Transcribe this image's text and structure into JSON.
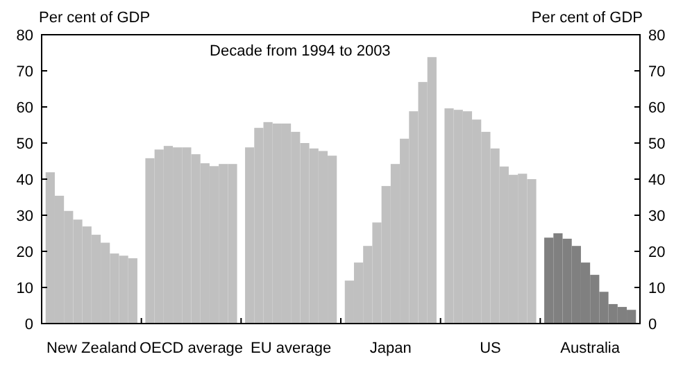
{
  "chart_data": {
    "type": "bar",
    "ylabel": "Per cent of GDP",
    "y2label": "Per cent of GDP",
    "annotations": [
      "Decade from 1994 to 2003"
    ],
    "categories": [
      "New Zealand",
      "OECD average",
      "EU average",
      "Japan",
      "US",
      "Australia"
    ],
    "series": [
      {
        "colors": [
          "#c0c0c0",
          "#c0c0c0",
          "#c0c0c0",
          "#c0c0c0",
          "#c0c0c0",
          "#808080"
        ],
        "values": [
          41.9,
          45.8,
          48.8,
          11.9,
          59.6,
          23.8
        ]
      },
      {
        "colors": [
          "#c0c0c0",
          "#c0c0c0",
          "#c0c0c0",
          "#c0c0c0",
          "#c0c0c0",
          "#808080"
        ],
        "values": [
          35.4,
          48.2,
          54.2,
          16.9,
          59.2,
          25.0
        ]
      },
      {
        "colors": [
          "#c0c0c0",
          "#c0c0c0",
          "#c0c0c0",
          "#c0c0c0",
          "#c0c0c0",
          "#808080"
        ],
        "values": [
          31.2,
          49.2,
          55.8,
          21.5,
          58.8,
          23.5
        ]
      },
      {
        "colors": [
          "#c0c0c0",
          "#c0c0c0",
          "#c0c0c0",
          "#c0c0c0",
          "#c0c0c0",
          "#808080"
        ],
        "values": [
          28.8,
          48.8,
          55.4,
          28.0,
          56.5,
          21.5
        ]
      },
      {
        "colors": [
          "#c0c0c0",
          "#c0c0c0",
          "#c0c0c0",
          "#c0c0c0",
          "#c0c0c0",
          "#808080"
        ],
        "values": [
          26.9,
          48.8,
          55.4,
          38.1,
          53.1,
          16.9
        ]
      },
      {
        "colors": [
          "#c0c0c0",
          "#c0c0c0",
          "#c0c0c0",
          "#c0c0c0",
          "#c0c0c0",
          "#808080"
        ],
        "values": [
          24.6,
          46.9,
          53.1,
          44.2,
          48.5,
          13.5
        ]
      },
      {
        "colors": [
          "#c0c0c0",
          "#c0c0c0",
          "#c0c0c0",
          "#c0c0c0",
          "#c0c0c0",
          "#808080"
        ],
        "values": [
          22.4,
          44.4,
          50.0,
          51.2,
          43.5,
          8.8
        ]
      },
      {
        "colors": [
          "#c0c0c0",
          "#c0c0c0",
          "#c0c0c0",
          "#c0c0c0",
          "#c0c0c0",
          "#808080"
        ],
        "values": [
          19.4,
          43.6,
          48.5,
          58.8,
          41.2,
          5.4
        ]
      },
      {
        "colors": [
          "#c0c0c0",
          "#c0c0c0",
          "#c0c0c0",
          "#c0c0c0",
          "#c0c0c0",
          "#808080"
        ],
        "values": [
          18.8,
          44.2,
          47.8,
          66.9,
          41.5,
          4.6
        ]
      },
      {
        "colors": [
          "#c0c0c0",
          "#c0c0c0",
          "#c0c0c0",
          "#c0c0c0",
          "#c0c0c0",
          "#808080"
        ],
        "values": [
          18.1,
          44.2,
          46.5,
          73.8,
          40.0,
          3.8
        ]
      }
    ],
    "ylim": [
      0,
      80
    ],
    "yticks": [
      0,
      10,
      20,
      30,
      40,
      50,
      60,
      70,
      80
    ],
    "y2lim": [
      0,
      80
    ],
    "y2ticks": [
      0,
      10,
      20,
      30,
      40,
      50,
      60,
      70,
      80
    ],
    "grid": false
  }
}
